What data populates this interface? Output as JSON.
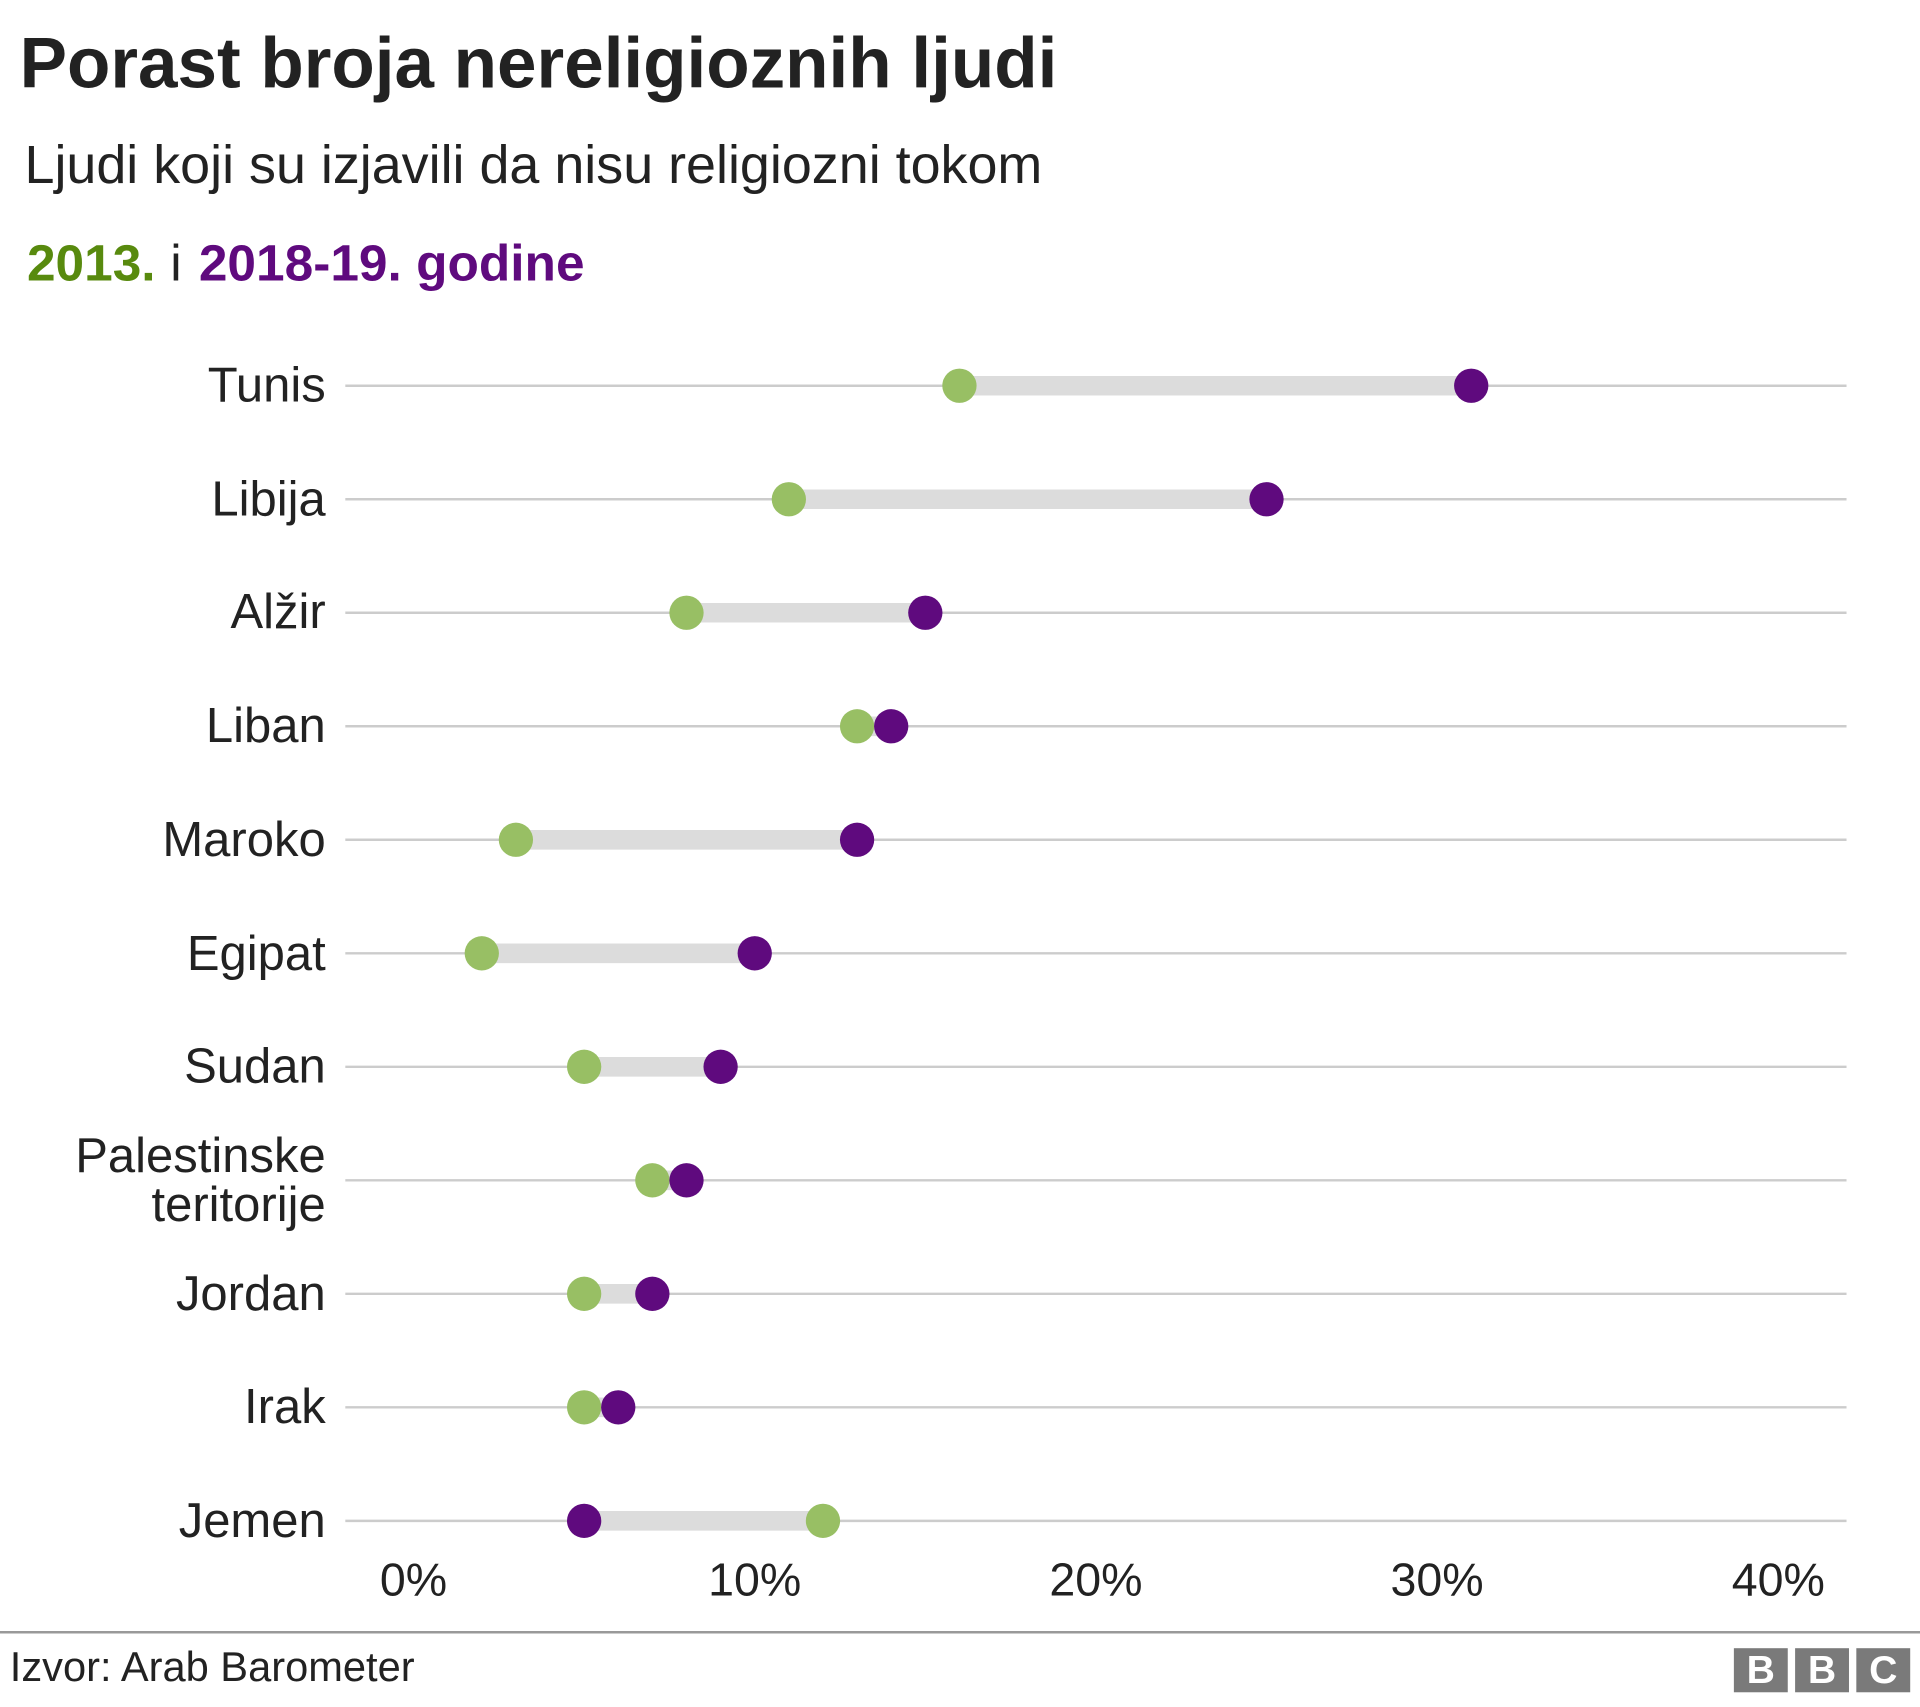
{
  "chart_data": {
    "type": "dumbbell",
    "title": "Porast broja nereligioznih ljudi",
    "subtitle": "Ljudi koji su izjavili da nisu religiozni tokom",
    "legend_joiner": "i",
    "categories": [
      "Tunis",
      "Libija",
      "Alžir",
      "Liban",
      "Maroko",
      "Egipat",
      "Sudan",
      "Palestinske\nteritorije",
      "Jordan",
      "Irak",
      "Jemen"
    ],
    "series": [
      {
        "name": "2013.",
        "color": "#98bf64",
        "label_color": "#588a0e",
        "values": [
          16,
          11,
          8,
          13,
          3,
          2,
          5,
          7,
          5,
          5,
          12
        ]
      },
      {
        "name": "2018-19. godine",
        "color": "#5f0a7e",
        "label_color": "#5f0a7e",
        "values": [
          31,
          25,
          15,
          14,
          13,
          10,
          9,
          8,
          7,
          6,
          5
        ]
      }
    ],
    "xlim": [
      -2,
      42
    ],
    "xticks": [
      {
        "value": 0,
        "label": "0%"
      },
      {
        "value": 10,
        "label": "10%"
      },
      {
        "value": 20,
        "label": "20%"
      },
      {
        "value": 30,
        "label": "30%"
      },
      {
        "value": 40,
        "label": "40%"
      }
    ],
    "grid": true,
    "source": "Izvor: Arab Barometer",
    "logo": [
      "B",
      "B",
      "C"
    ]
  }
}
